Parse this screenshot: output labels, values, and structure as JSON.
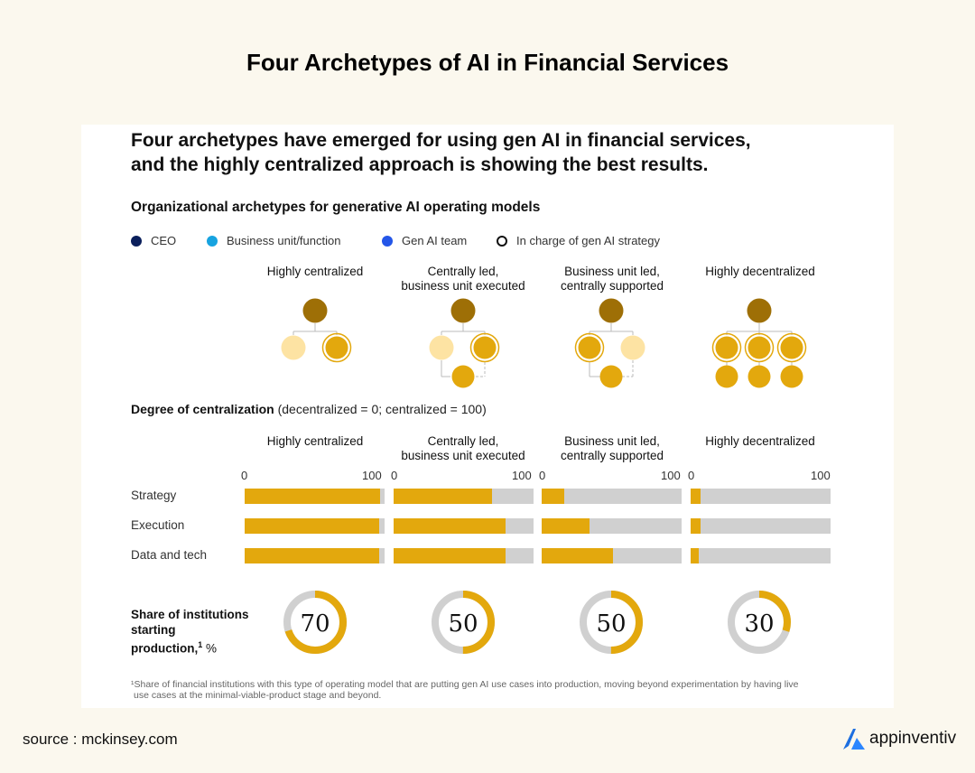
{
  "page_title": "Four Archetypes of AI in Financial Services",
  "headline_line1": "Four archetypes have emerged for using gen AI in financial services,",
  "headline_line2": "and the highly centralized approach is showing the best results.",
  "subtitle": "Organizational archetypes for generative AI operating models",
  "legend": [
    {
      "label": "CEO",
      "color": "#0b1f5c",
      "style": "filled"
    },
    {
      "label": "Business unit/function",
      "color": "#17a3e0",
      "style": "filled"
    },
    {
      "label": "Gen AI team",
      "color": "#2456e8",
      "style": "filled"
    },
    {
      "label": "In charge of gen AI strategy",
      "color": "#111111",
      "style": "ring"
    }
  ],
  "archetypes": [
    {
      "line1": "",
      "line2": "Highly centralized"
    },
    {
      "line1": "Centrally led,",
      "line2": "business unit executed"
    },
    {
      "line1": "Business unit led,",
      "line2": "centrally supported"
    },
    {
      "line1": "",
      "line2": "Highly decentralized"
    }
  ],
  "degree_title": "Degree of centralization",
  "degree_note": " (decentralized = 0; centralized = 100)",
  "axis_min": "0",
  "axis_max": "100",
  "colors": {
    "accent": "#e3a80d",
    "ceo": "#9e6f06",
    "light": "#fde3a3",
    "track": "#d0d0d0"
  },
  "share_label_line1": "Share of institutions",
  "share_label_line2": "starting",
  "share_label_line3": "production,",
  "share_label_sup": "1",
  "share_label_unit": " %",
  "footnote_line1": "¹Share of financial institutions with this type of operating model that are putting gen AI use cases into production, moving beyond experimentation by having live",
  "footnote_line2": "use cases at the minimal-viable-product stage and beyond.",
  "source": "source : mckinsey.com",
  "brand": "appinventiv",
  "chart_data": [
    {
      "type": "bar",
      "title": "Degree of centralization (decentralized = 0; centralized = 100)",
      "categories": [
        "Strategy",
        "Execution",
        "Data and tech"
      ],
      "ylim": [
        0,
        100
      ],
      "series": [
        {
          "name": "Highly centralized",
          "values": [
            97,
            96,
            96
          ]
        },
        {
          "name": "Centrally led, business unit executed",
          "values": [
            70,
            80,
            80
          ]
        },
        {
          "name": "Business unit led, centrally supported",
          "values": [
            16,
            34,
            51
          ]
        },
        {
          "name": "Highly decentralized",
          "values": [
            7,
            7,
            6
          ]
        }
      ]
    },
    {
      "type": "pie",
      "title": "Share of institutions starting production, %",
      "categories": [
        "Highly centralized",
        "Centrally led, business unit executed",
        "Business unit led, centrally supported",
        "Highly decentralized"
      ],
      "values": [
        70,
        50,
        50,
        30
      ]
    }
  ]
}
